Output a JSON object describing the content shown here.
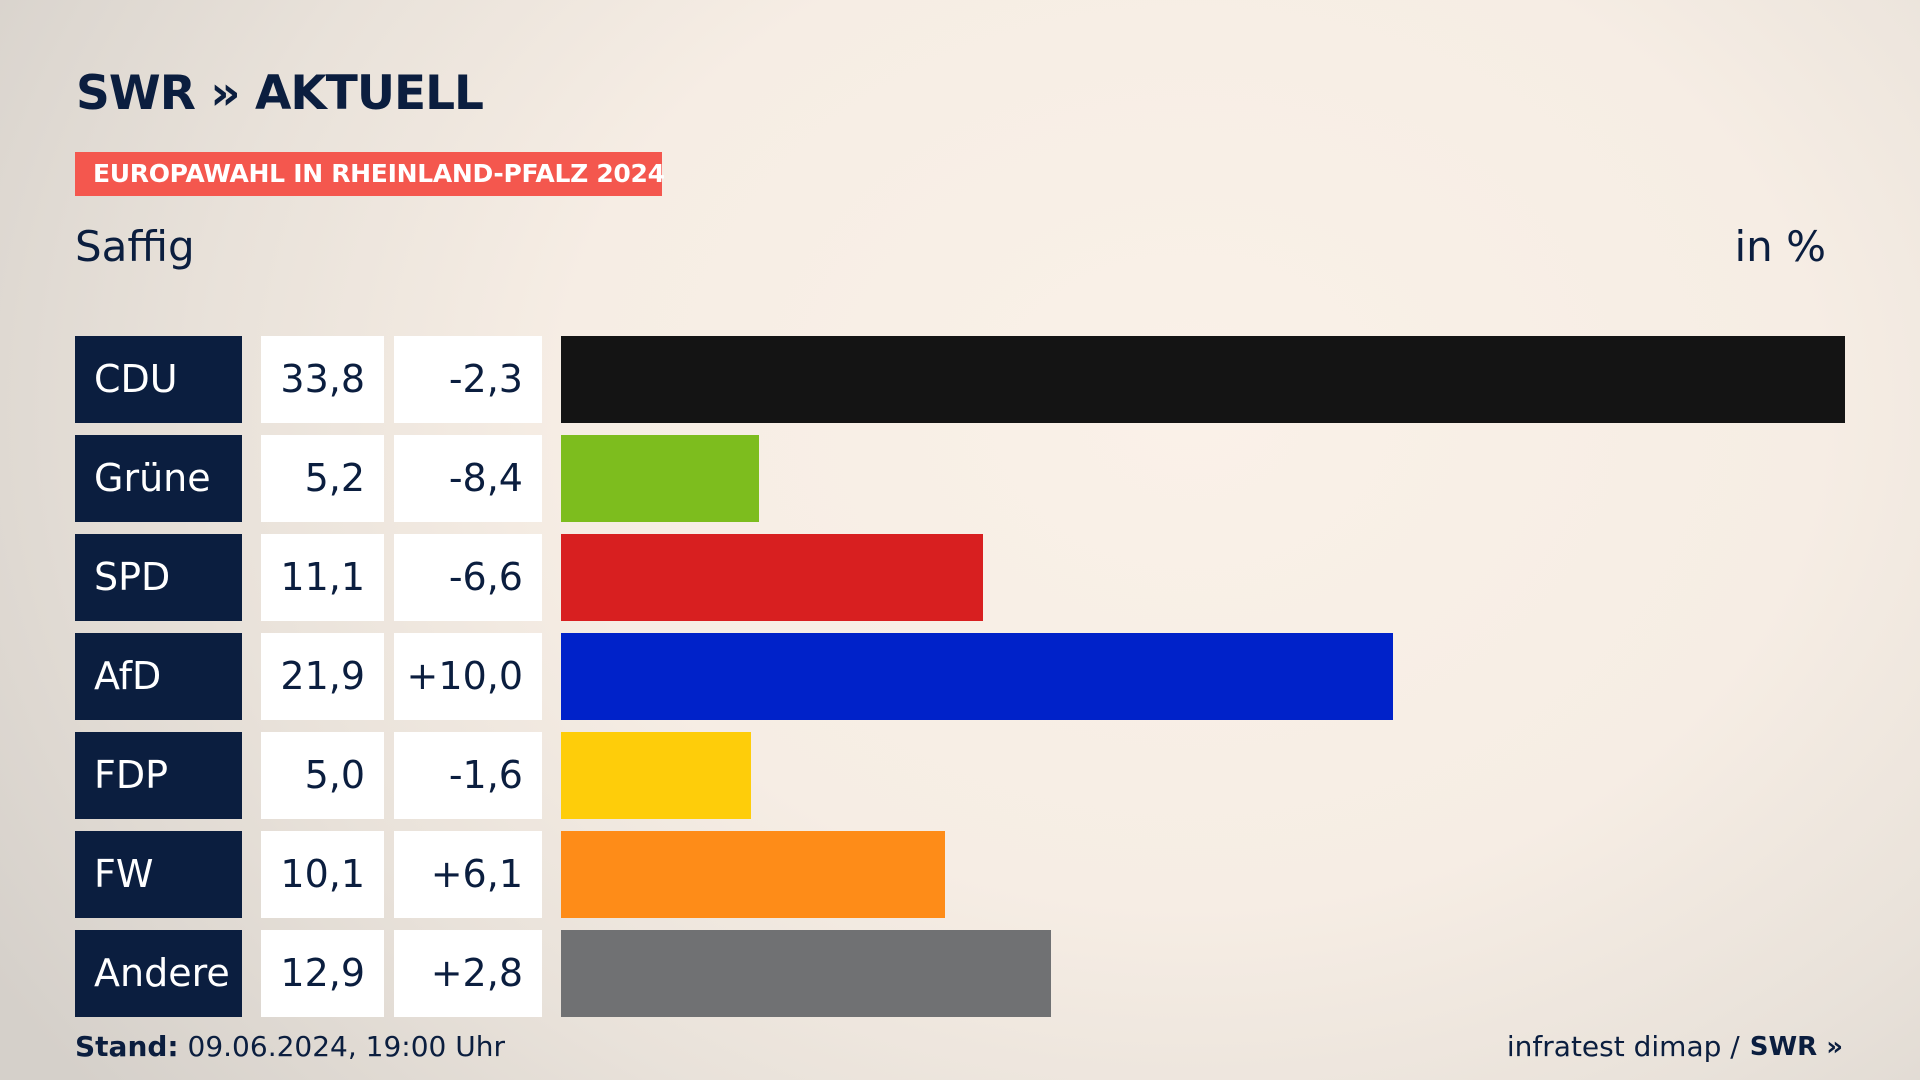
{
  "header": {
    "logo_text": "SWR » AKTUELL",
    "banner": "EUROPAWAHL IN RHEINLAND-PFALZ 2024",
    "region": "Saffig",
    "unit": "in %"
  },
  "chart_data": {
    "type": "bar",
    "orientation": "horizontal",
    "categories": [
      "CDU",
      "Grüne",
      "SPD",
      "AfD",
      "FDP",
      "FW",
      "Andere"
    ],
    "values": [
      33.8,
      5.2,
      11.1,
      21.9,
      5.0,
      10.1,
      12.9
    ],
    "value_labels": [
      "33,8",
      "5,2",
      "11,1",
      "21,9",
      "5,0",
      "10,1",
      "12,9"
    ],
    "changes": [
      -2.3,
      -8.4,
      -6.6,
      10.0,
      -1.6,
      6.1,
      2.8
    ],
    "change_labels": [
      "-2,3",
      "-8,4",
      "-6,6",
      "+10,0",
      "-1,6",
      "+6,1",
      "+2,8"
    ],
    "colors": [
      "#141414",
      "#7dbd1e",
      "#d81f20",
      "#0022c9",
      "#fecd0a",
      "#fe8c18",
      "#707173"
    ],
    "xlim": [
      0,
      33.8
    ],
    "grid": false,
    "legend": "none"
  },
  "footer": {
    "stand_label": "Stand:",
    "stand_value": "09.06.2024, 19:00 Uhr",
    "source": "infratest dimap /",
    "source_logo": "SWR »"
  }
}
